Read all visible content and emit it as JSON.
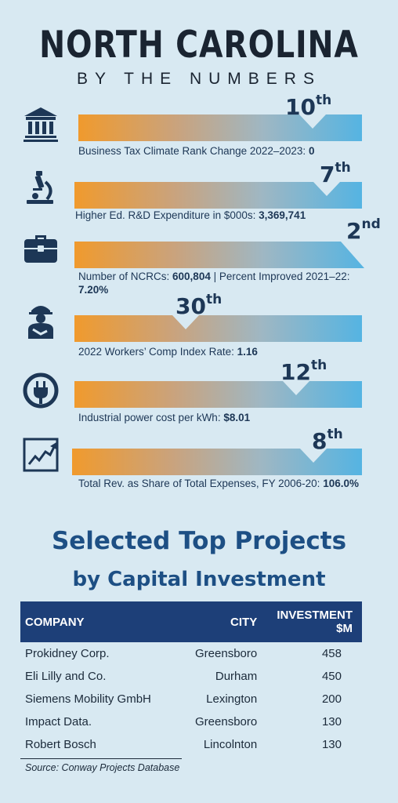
{
  "header": {
    "title": "NORTH CAROLINA",
    "subtitle": "BY THE NUMBERS"
  },
  "metrics": [
    {
      "icon": "bank-building-icon",
      "rank": "10",
      "suffix": "th",
      "label": "Business Tax Climate Rank Change 2022–2023: ",
      "value": "0"
    },
    {
      "icon": "microscope-icon",
      "rank": "7",
      "suffix": "th",
      "label": "Higher Ed. R&D Expenditure in $000s: ",
      "value": "3,369,741"
    },
    {
      "icon": "briefcase-icon",
      "rank": "2",
      "suffix": "nd",
      "label": "Number of NCRCs: ",
      "value": "600,804",
      "label2": " | Percent Improved 2021–22:",
      "value2": "7.20%"
    },
    {
      "icon": "injured-worker-icon",
      "rank": "30",
      "suffix": "th",
      "label": "2022 Workers’ Comp Index Rate: ",
      "value": "1.16"
    },
    {
      "icon": "power-plug-icon",
      "rank": "12",
      "suffix": "th",
      "label": "Industrial power cost per kWh: ",
      "value": "$8.01"
    },
    {
      "icon": "rising-chart-icon",
      "rank": "8",
      "suffix": "th",
      "label": "Total Rev. as Share of Total Expenses, FY 2006-20: ",
      "value": "106.0%"
    }
  ],
  "projects": {
    "heading1": "Selected Top Projects",
    "heading2": "by Capital Investment",
    "columns": [
      "COMPANY",
      "CITY",
      "INVESTMENT $M"
    ],
    "rows": [
      [
        "Prokidney Corp.",
        "Greensboro",
        "458"
      ],
      [
        "Eli Lilly and Co.",
        "Durham",
        "450"
      ],
      [
        "Siemens Mobility GmbH",
        "Lexington",
        "200"
      ],
      [
        "Impact Data.",
        "Greensboro",
        "130"
      ],
      [
        "Robert Bosch",
        "Lincolnton",
        "130"
      ]
    ],
    "source": "Source: Conway Projects Database"
  },
  "colors": {
    "background": "#d8e9f2",
    "bar_start": "#f09a2d",
    "bar_end": "#55b4e2",
    "navy": "#1d3756",
    "table_header": "#1d3f78",
    "heading_blue": "#1d4f84"
  }
}
